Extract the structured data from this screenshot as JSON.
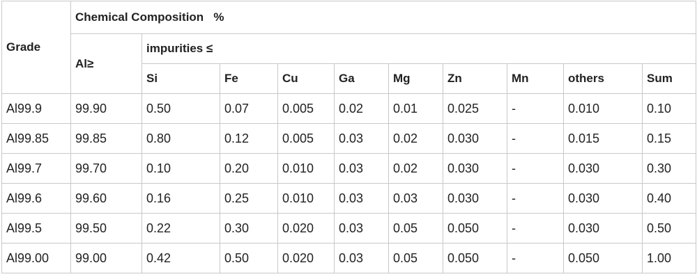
{
  "table": {
    "grade_label": "Grade",
    "composition_label": "Chemical Composition   %",
    "al_label": "Al≥",
    "impurities_label": "impurities ≤",
    "columns": [
      "Si",
      "Fe",
      "Cu",
      "Ga",
      "Mg",
      "Zn",
      "Mn",
      "others",
      "Sum"
    ],
    "rows": [
      [
        "Al99.9",
        "99.90",
        "0.50",
        "0.07",
        "0.005",
        "0.02",
        "0.01",
        "0.025",
        "-",
        "0.010",
        "0.10"
      ],
      [
        "Al99.85",
        "99.85",
        "0.80",
        "0.12",
        "0.005",
        "0.03",
        "0.02",
        "0.030",
        "-",
        "0.015",
        "0.15"
      ],
      [
        "Al99.7",
        "99.70",
        "0.10",
        "0.20",
        "0.010",
        "0.03",
        "0.02",
        "0.030",
        "-",
        "0.030",
        "0.30"
      ],
      [
        "Al99.6",
        "99.60",
        "0.16",
        "0.25",
        "0.010",
        "0.03",
        "0.03",
        "0.030",
        "-",
        "0.030",
        "0.40"
      ],
      [
        "Al99.5",
        "99.50",
        "0.22",
        "0.30",
        "0.020",
        "0.03",
        "0.05",
        "0.050",
        "-",
        "0.030",
        "0.50"
      ],
      [
        "Al99.00",
        "99.00",
        "0.42",
        "0.50",
        "0.020",
        "0.03",
        "0.05",
        "0.050",
        "-",
        "0.050",
        "1.00"
      ]
    ]
  }
}
